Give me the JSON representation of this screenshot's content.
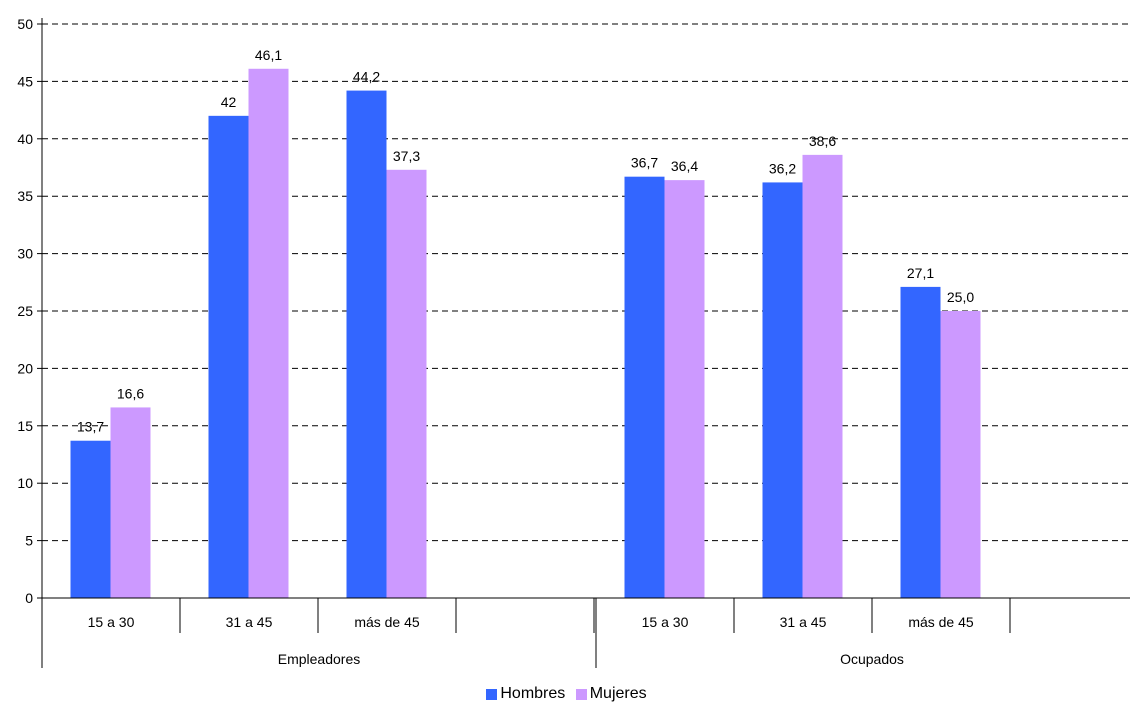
{
  "chart_data": {
    "type": "bar",
    "groups": [
      {
        "label": "Empleadores",
        "categories": [
          "15 a 30",
          "31 a 45",
          "más de 45"
        ]
      },
      {
        "label": "Ocupados",
        "categories": [
          "15 a 30",
          "31 a 45",
          "más de 45"
        ]
      }
    ],
    "series": [
      {
        "name": "Hombres",
        "color": "#3366FF",
        "values": [
          13.7,
          42,
          44.2,
          36.7,
          36.2,
          27.1
        ],
        "labels": [
          "13,7",
          "42",
          "44,2",
          "36,7",
          "36,2",
          "27,1"
        ]
      },
      {
        "name": "Mujeres",
        "color": "#CC99FF",
        "values": [
          16.6,
          46.1,
          37.3,
          36.4,
          38.6,
          25.0
        ],
        "labels": [
          "16,6",
          "46,1",
          "37,3",
          "36,4",
          "38,6",
          "25,0"
        ]
      }
    ],
    "yticks": [
      "0",
      "5",
      "10",
      "15",
      "20",
      "25",
      "30",
      "35",
      "40",
      "45",
      "50"
    ],
    "ylim": [
      0,
      50
    ],
    "grid": true,
    "legend_position": "bottom"
  }
}
